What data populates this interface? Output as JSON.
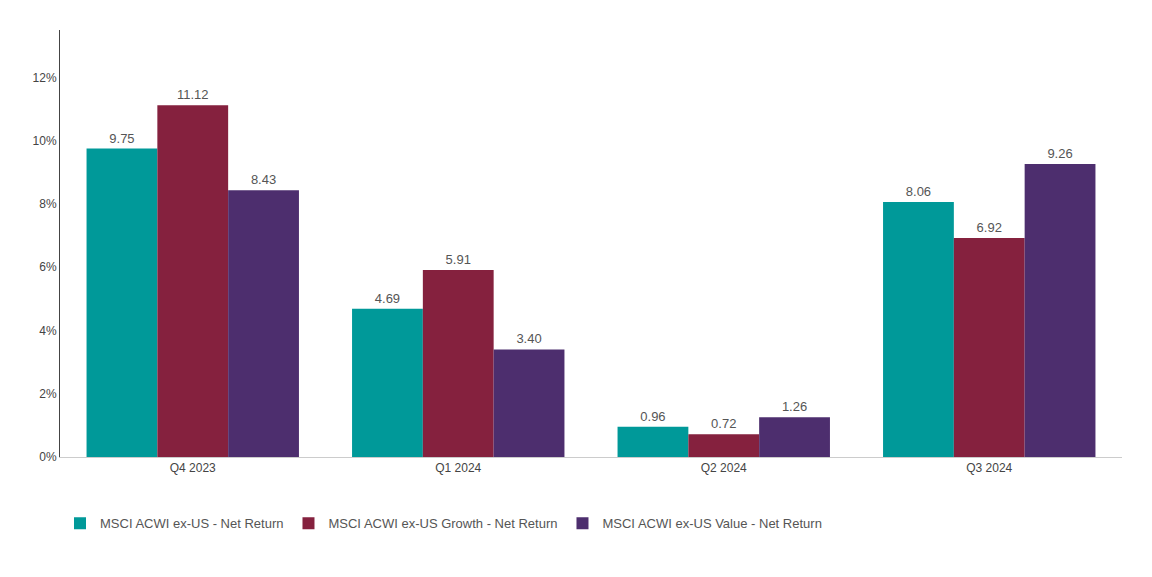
{
  "chart_data": {
    "type": "bar",
    "categories": [
      "Q4 2023",
      "Q1 2024",
      "Q2 2024",
      "Q3 2024"
    ],
    "series": [
      {
        "name": "MSCI ACWI ex-US - Net Return",
        "color": "#009999",
        "values": [
          9.75,
          4.69,
          0.96,
          8.06
        ],
        "value_labels": [
          "9.75",
          "4.69",
          "0.96",
          "8.06"
        ]
      },
      {
        "name": "MSCI ACWI ex-US Growth - Net Return",
        "color": "#85213E",
        "values": [
          11.12,
          5.91,
          0.72,
          6.92
        ],
        "value_labels": [
          "11.12",
          "5.91",
          "0.72",
          "6.92"
        ]
      },
      {
        "name": "MSCI ACWI ex-US Value - Net Return",
        "color": "#4D2E6E",
        "values": [
          8.43,
          3.4,
          1.26,
          9.26
        ],
        "value_labels": [
          "8.43",
          "3.40",
          "1.26",
          "9.26"
        ]
      }
    ],
    "ylim": [
      0,
      13.5
    ],
    "yticks": [
      {
        "value": 0,
        "label": "0%"
      },
      {
        "value": 2,
        "label": "2%"
      },
      {
        "value": 4,
        "label": "4%"
      },
      {
        "value": 6,
        "label": "6%"
      },
      {
        "value": 8,
        "label": "8%"
      },
      {
        "value": 10,
        "label": "10%"
      },
      {
        "value": 12,
        "label": "12%"
      }
    ],
    "grid": false,
    "legend": "bottom",
    "data_labels": true
  }
}
